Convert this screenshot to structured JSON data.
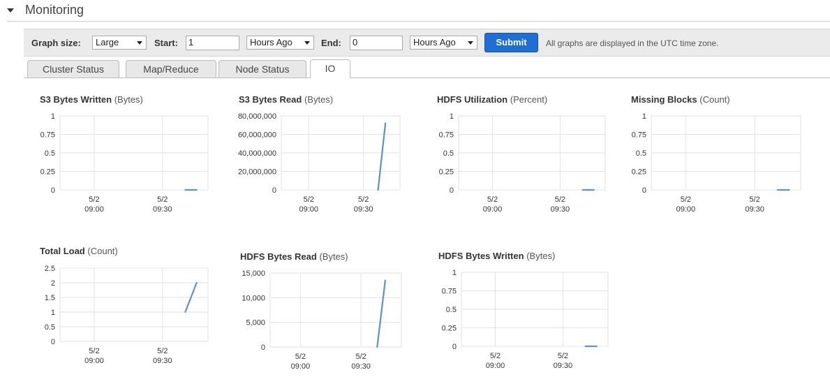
{
  "section": {
    "title": "Monitoring"
  },
  "toolbar": {
    "graph_size_label": "Graph size:",
    "graph_size_value": "Large",
    "start_label": "Start:",
    "start_value": "1",
    "start_unit": "Hours Ago",
    "end_label": "End:",
    "end_value": "0",
    "end_unit": "Hours Ago",
    "submit_label": "Submit",
    "timezone_note": "All graphs are displayed in the UTC time zone."
  },
  "tabs": [
    {
      "label": "Cluster Status",
      "active": false
    },
    {
      "label": "Map/Reduce",
      "active": false
    },
    {
      "label": "Node Status",
      "active": false
    },
    {
      "label": "IO",
      "active": true
    }
  ],
  "colors": {
    "series": "#5b92c9",
    "grid": "#e2e2e2",
    "accent": "#1f6ed4"
  },
  "chart_data": [
    {
      "id": "s3-bytes-written",
      "type": "line",
      "title": "S3 Bytes Written",
      "unit": "(Bytes)",
      "y_ticks": [
        "0",
        "0.25",
        "0.5",
        "0.75",
        "1"
      ],
      "ylim": [
        0,
        1
      ],
      "x_ticks": [
        [
          "5/2",
          "09:00"
        ],
        [
          "5/2",
          "09:30"
        ]
      ],
      "grid": true,
      "series": [
        {
          "x": [
            "09:40",
            "09:45"
          ],
          "values": [
            0,
            0
          ]
        }
      ]
    },
    {
      "id": "s3-bytes-read",
      "type": "line",
      "title": "S3 Bytes Read",
      "unit": "(Bytes)",
      "y_ticks": [
        "0",
        "20,000,000",
        "40,000,000",
        "60,000,000",
        "80,000,000"
      ],
      "ylim": [
        0,
        80000000
      ],
      "x_ticks": [
        [
          "5/2",
          "09:00"
        ],
        [
          "5/2",
          "09:30"
        ]
      ],
      "grid": true,
      "series": [
        {
          "x": [
            "09:38",
            "09:42"
          ],
          "values": [
            0,
            72000000
          ]
        }
      ]
    },
    {
      "id": "hdfs-utilization",
      "type": "line",
      "title": "HDFS Utilization",
      "unit": "(Percent)",
      "y_ticks": [
        "0",
        "0.25",
        "0.5",
        "0.75",
        "1"
      ],
      "ylim": [
        0,
        1
      ],
      "x_ticks": [
        [
          "5/2",
          "09:00"
        ],
        [
          "5/2",
          "09:30"
        ]
      ],
      "grid": true,
      "series": [
        {
          "x": [
            "09:40",
            "09:45"
          ],
          "values": [
            0,
            0
          ]
        }
      ]
    },
    {
      "id": "missing-blocks",
      "type": "line",
      "title": "Missing Blocks",
      "unit": "(Count)",
      "y_ticks": [
        "0",
        "0.25",
        "0.5",
        "0.75",
        "1"
      ],
      "ylim": [
        0,
        1
      ],
      "x_ticks": [
        [
          "5/2",
          "09:00"
        ],
        [
          "5/2",
          "09:30"
        ]
      ],
      "grid": true,
      "series": [
        {
          "x": [
            "09:40",
            "09:45"
          ],
          "values": [
            0,
            0
          ]
        }
      ]
    },
    {
      "id": "total-load",
      "type": "line",
      "title": "Total Load",
      "unit": "(Count)",
      "y_ticks": [
        "0",
        "0.5",
        "1",
        "1.5",
        "2",
        "2.5"
      ],
      "ylim": [
        0,
        2.5
      ],
      "x_ticks": [
        [
          "5/2",
          "09:00"
        ],
        [
          "5/2",
          "09:30"
        ]
      ],
      "grid": true,
      "series": [
        {
          "x": [
            "09:40",
            "09:45"
          ],
          "values": [
            1,
            2
          ]
        }
      ]
    },
    {
      "id": "hdfs-bytes-read",
      "type": "line",
      "title": "HDFS Bytes Read",
      "unit": "(Bytes)",
      "y_ticks": [
        "0",
        "5,000",
        "10,000",
        "15,000"
      ],
      "ylim": [
        0,
        15000
      ],
      "x_ticks": [
        [
          "5/2",
          "09:00"
        ],
        [
          "5/2",
          "09:30"
        ]
      ],
      "grid": true,
      "series": [
        {
          "x": [
            "09:38",
            "09:42"
          ],
          "values": [
            0,
            13500
          ]
        }
      ]
    },
    {
      "id": "hdfs-bytes-written",
      "type": "line",
      "title": "HDFS Bytes Written",
      "unit": "(Bytes)",
      "y_ticks": [
        "0",
        "0.25",
        "0.5",
        "0.75",
        "1"
      ],
      "ylim": [
        0,
        1
      ],
      "x_ticks": [
        [
          "5/2",
          "09:00"
        ],
        [
          "5/2",
          "09:30"
        ]
      ],
      "grid": true,
      "series": [
        {
          "x": [
            "09:40",
            "09:45"
          ],
          "values": [
            0,
            0
          ]
        }
      ]
    }
  ]
}
